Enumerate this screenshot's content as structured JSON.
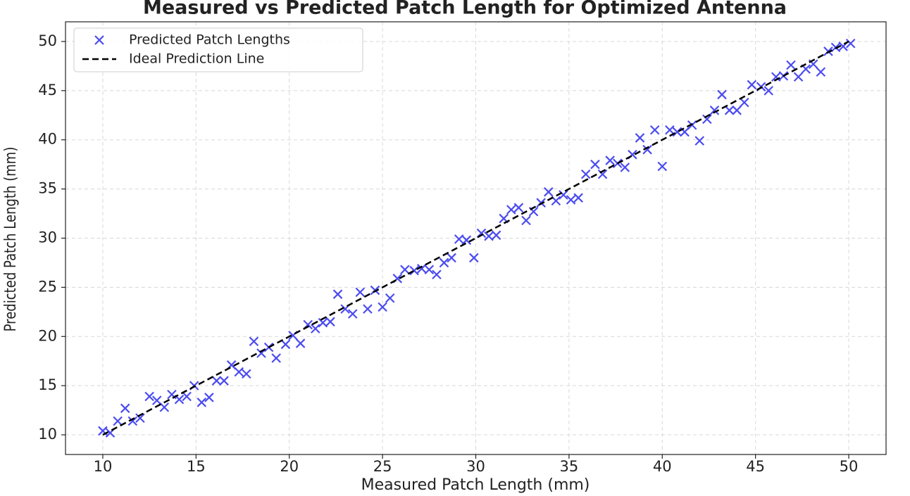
{
  "chart_data": {
    "type": "scatter",
    "title": "Measured vs Predicted Patch Length for Optimized Antenna",
    "x_label": "Measured Patch Length (mm)",
    "y_label": "Predicted Patch Length (mm)",
    "xlim": [
      8,
      52
    ],
    "ylim": [
      8,
      52
    ],
    "xticks": [
      10,
      15,
      20,
      25,
      30,
      35,
      40,
      45,
      50
    ],
    "yticks": [
      10,
      15,
      20,
      25,
      30,
      35,
      40,
      45,
      50
    ],
    "grid": true,
    "legend": "upper left",
    "series": [
      {
        "name": "Predicted Patch Lengths",
        "type": "scatter",
        "marker": "x",
        "color": "#4b4bf0",
        "x": [
          10,
          10.4,
          10.8,
          11.2,
          11.6,
          12,
          12.5,
          12.9,
          13.3,
          13.7,
          14.1,
          14.5,
          14.9,
          15.3,
          15.7,
          16.1,
          16.5,
          16.9,
          17.3,
          17.7,
          18.1,
          18.5,
          18.9,
          19.3,
          19.8,
          20.2,
          20.6,
          21,
          21.4,
          21.8,
          22.2,
          22.6,
          23,
          23.4,
          23.8,
          24.2,
          24.6,
          25,
          25.4,
          25.8,
          26.2,
          26.7,
          27.1,
          27.5,
          27.9,
          28.3,
          28.7,
          29.1,
          29.5,
          29.9,
          30.3,
          30.7,
          31.1,
          31.5,
          31.9,
          32.3,
          32.7,
          33.1,
          33.5,
          33.9,
          34.3,
          34.7,
          35.1,
          35.5,
          35.9,
          36.4,
          36.8,
          37.2,
          37.6,
          38,
          38.4,
          38.8,
          39.2,
          39.6,
          40,
          40.4,
          40.8,
          41.2,
          41.6,
          42,
          42.4,
          42.8,
          43.2,
          43.6,
          44,
          44.4,
          44.8,
          45.3,
          45.7,
          46.1,
          46.5,
          46.9,
          47.3,
          47.7,
          48.1,
          48.5,
          48.9,
          49.3,
          49.7,
          50.1
        ],
        "values": [
          10.4,
          10.2,
          11.4,
          12.7,
          11.4,
          11.7,
          13.9,
          13.5,
          12.8,
          14.1,
          13.6,
          13.9,
          15,
          13.3,
          13.8,
          15.5,
          15.5,
          17.1,
          16.4,
          16.2,
          19.5,
          18.3,
          18.9,
          17.8,
          19.2,
          20.1,
          19.3,
          21.2,
          20.8,
          21.4,
          21.5,
          24.3,
          22.8,
          22.3,
          24.5,
          22.8,
          24.7,
          23,
          23.9,
          25.9,
          26.8,
          26.7,
          26.9,
          26.8,
          26.3,
          27.5,
          28,
          29.9,
          29.8,
          28,
          30.5,
          30.2,
          30.3,
          32,
          32.9,
          33.1,
          31.8,
          32.7,
          33.6,
          34.7,
          33.8,
          34.4,
          33.9,
          34.1,
          36.5,
          37.5,
          36.5,
          37.9,
          37.6,
          37.2,
          38.5,
          40.2,
          39,
          41,
          37.3,
          41,
          40.8,
          40.8,
          41.5,
          39.9,
          42.1,
          43,
          44.6,
          43,
          43,
          43.8,
          45.6,
          45.4,
          45,
          46.4,
          46.5,
          47.6,
          46.4,
          47.2,
          47.7,
          46.9,
          49,
          49.4,
          49.5,
          49.8
        ]
      },
      {
        "name": "Ideal Prediction Line",
        "type": "line",
        "dash": "dashed",
        "color": "#000000",
        "x": [
          10,
          50
        ],
        "values": [
          10,
          50
        ]
      }
    ]
  }
}
